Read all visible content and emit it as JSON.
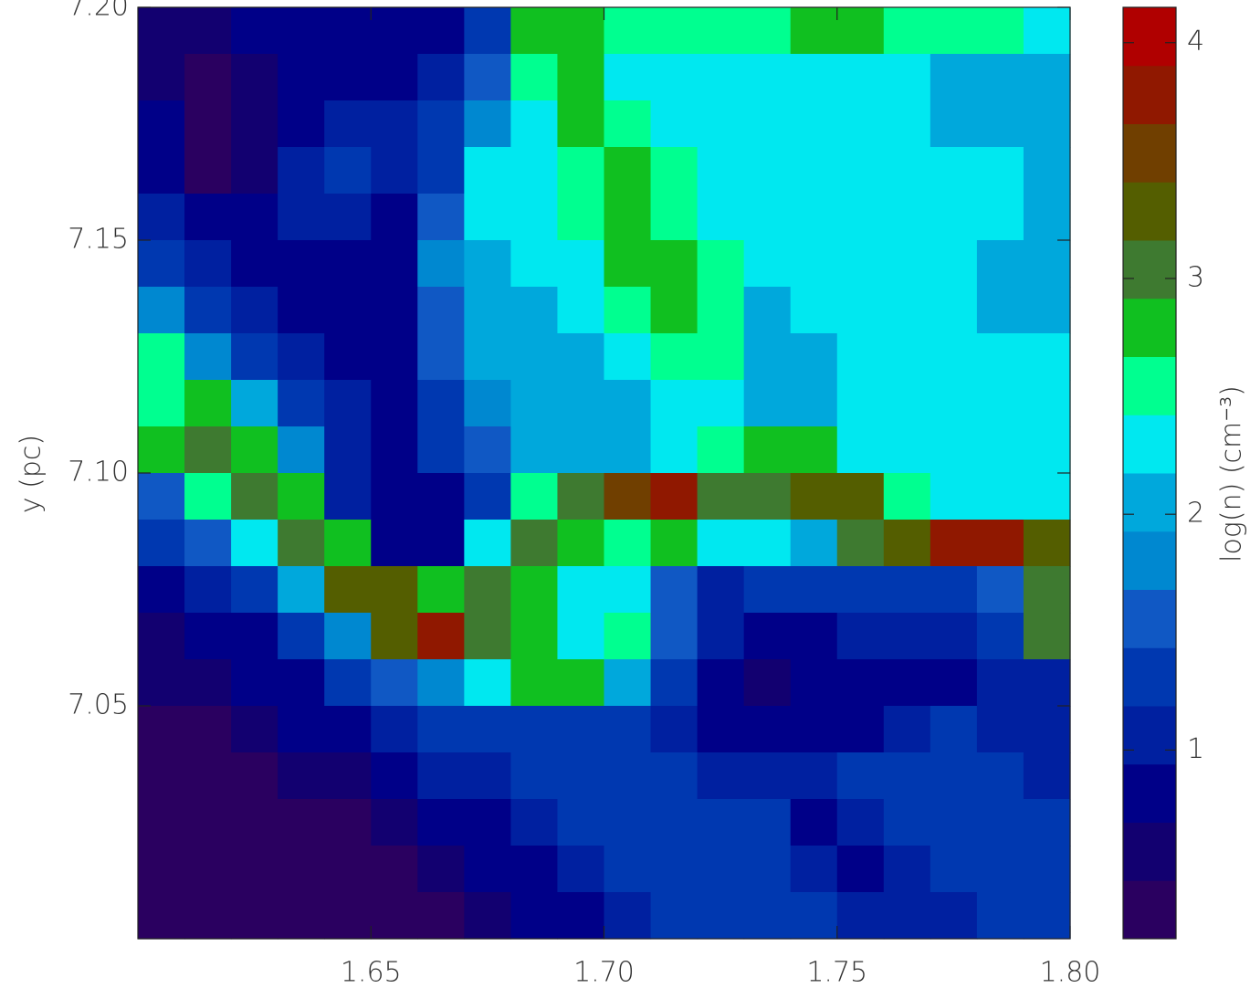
{
  "chart_data": {
    "type": "heatmap",
    "y_label": "y (pc)",
    "xlim": [
      1.6,
      1.8
    ],
    "xticks": [
      1.65,
      {
        "value": 1.7,
        "label": "1.70"
      },
      1.75,
      {
        "value": 1.8,
        "label": "1.80"
      }
    ],
    "ylim": [
      7.0,
      7.2
    ],
    "yticks": [
      7.05,
      {
        "value": 7.1,
        "label": "7.10"
      },
      7.15,
      {
        "value": 7.2,
        "label": "7.20"
      }
    ],
    "z": [
      [
        0.6,
        0.5,
        0.8,
        0.8,
        0.8,
        0.9,
        0.8,
        1.3,
        2.8,
        2.8,
        2.5,
        2.5,
        2.5,
        2.5,
        2.8,
        2.8,
        2.5,
        2.5,
        2.5,
        2.3
      ],
      [
        0.6,
        0.4,
        0.6,
        0.9,
        0.8,
        0.9,
        1.0,
        1.5,
        2.6,
        2.8,
        2.3,
        2.3,
        2.3,
        2.3,
        2.3,
        2.3,
        2.3,
        2.1,
        2.1,
        2.1
      ],
      [
        0.8,
        0.4,
        0.5,
        0.9,
        1.0,
        1.0,
        1.2,
        1.7,
        2.3,
        2.8,
        2.6,
        2.3,
        2.3,
        2.3,
        2.3,
        2.3,
        2.3,
        2.1,
        2.1,
        2.1
      ],
      [
        0.8,
        0.4,
        0.6,
        1.0,
        1.2,
        1.1,
        1.4,
        2.2,
        2.3,
        2.6,
        2.8,
        2.5,
        2.3,
        2.3,
        2.3,
        2.3,
        2.3,
        2.3,
        2.3,
        2.1
      ],
      [
        1.1,
        0.8,
        0.8,
        1.0,
        1.1,
        0.9,
        1.6,
        2.2,
        2.3,
        2.5,
        2.8,
        2.6,
        2.3,
        2.3,
        2.3,
        2.3,
        2.3,
        2.3,
        2.3,
        2.1
      ],
      [
        1.2,
        1.0,
        0.9,
        0.9,
        0.9,
        0.9,
        1.7,
        2.1,
        2.3,
        2.3,
        2.8,
        2.8,
        2.5,
        2.3,
        2.3,
        2.3,
        2.3,
        2.3,
        2.1,
        2.1
      ],
      [
        1.8,
        1.4,
        1.1,
        0.9,
        0.9,
        0.9,
        1.6,
        2.1,
        2.1,
        2.3,
        2.5,
        2.8,
        2.6,
        2.0,
        2.3,
        2.3,
        2.3,
        2.3,
        2.1,
        2.1
      ],
      [
        2.5,
        1.9,
        1.2,
        1.1,
        0.9,
        0.9,
        1.5,
        2.0,
        2.1,
        2.1,
        2.3,
        2.6,
        2.5,
        2.0,
        2.0,
        2.3,
        2.3,
        2.3,
        2.3,
        2.3
      ],
      [
        2.6,
        2.8,
        2.0,
        1.2,
        1.0,
        0.9,
        1.4,
        1.7,
        2.0,
        2.1,
        2.1,
        2.3,
        2.3,
        2.0,
        2.0,
        2.3,
        2.3,
        2.3,
        2.3,
        2.3
      ],
      [
        2.8,
        3.0,
        2.9,
        1.8,
        1.1,
        0.9,
        1.3,
        1.5,
        2.0,
        2.0,
        2.1,
        2.3,
        2.6,
        2.8,
        2.7,
        2.3,
        2.3,
        2.3,
        2.3,
        2.3
      ],
      [
        1.6,
        2.6,
        3.1,
        2.9,
        1.1,
        0.8,
        0.8,
        1.2,
        2.5,
        3.0,
        3.6,
        3.8,
        3.0,
        3.0,
        3.3,
        3.3,
        2.5,
        2.3,
        2.3,
        2.3
      ],
      [
        1.2,
        1.6,
        2.3,
        3.0,
        2.8,
        0.9,
        0.9,
        2.2,
        3.0,
        2.9,
        2.6,
        2.8,
        2.3,
        2.3,
        2.0,
        3.1,
        3.4,
        3.8,
        3.9,
        3.2
      ],
      [
        0.8,
        1.0,
        1.4,
        2.0,
        3.2,
        3.4,
        2.8,
        3.0,
        2.9,
        2.3,
        2.2,
        1.5,
        1.1,
        1.2,
        1.2,
        1.3,
        1.4,
        1.3,
        1.6,
        3.0
      ],
      [
        0.6,
        0.7,
        0.9,
        1.3,
        1.9,
        3.2,
        3.8,
        3.0,
        2.9,
        2.2,
        2.6,
        1.5,
        1.0,
        0.9,
        0.9,
        1.0,
        1.0,
        1.0,
        1.2,
        3.1
      ],
      [
        0.5,
        0.5,
        0.7,
        0.9,
        1.2,
        1.5,
        1.8,
        2.2,
        2.7,
        2.7,
        2.0,
        1.3,
        0.8,
        0.6,
        0.8,
        0.9,
        0.9,
        0.9,
        1.0,
        1.1
      ],
      [
        0.4,
        0.4,
        0.5,
        0.7,
        0.9,
        1.1,
        1.2,
        1.3,
        1.3,
        1.3,
        1.2,
        1.1,
        0.9,
        0.8,
        0.9,
        0.9,
        1.0,
        1.2,
        1.0,
        1.0
      ],
      [
        0.4,
        0.4,
        0.4,
        0.5,
        0.6,
        0.8,
        1.0,
        1.1,
        1.2,
        1.3,
        1.3,
        1.2,
        1.0,
        1.0,
        1.1,
        1.2,
        1.2,
        1.3,
        1.2,
        1.0
      ],
      [
        0.4,
        0.4,
        0.4,
        0.4,
        0.4,
        0.5,
        0.7,
        0.9,
        1.1,
        1.2,
        1.3,
        1.4,
        1.3,
        1.2,
        0.8,
        1.0,
        1.2,
        1.3,
        1.2,
        1.2
      ],
      [
        0.4,
        0.4,
        0.4,
        0.4,
        0.4,
        0.4,
        0.5,
        0.7,
        0.9,
        1.0,
        1.2,
        1.3,
        1.3,
        1.2,
        1.1,
        0.9,
        1.1,
        1.2,
        1.3,
        1.3
      ],
      [
        0.4,
        0.4,
        0.4,
        0.4,
        0.4,
        0.4,
        0.4,
        0.5,
        0.7,
        0.9,
        1.1,
        1.2,
        1.3,
        1.3,
        1.2,
        1.1,
        1.0,
        1.1,
        1.2,
        1.3
      ]
    ],
    "colorbar": {
      "label": "log(n)  (cm⁻³)",
      "lim": [
        0.2,
        4.15
      ],
      "ticks": [
        1,
        2,
        3,
        4
      ],
      "colors": [
        "#2a0060",
        "#120070",
        "#000088",
        "#0020a0",
        "#0038b0",
        "#1058c4",
        "#0088d0",
        "#00a8dc",
        "#00e8f0",
        "#00ff90",
        "#10c020",
        "#3e7a30",
        "#545e00",
        "#703f00",
        "#901800",
        "#b00000"
      ]
    }
  }
}
